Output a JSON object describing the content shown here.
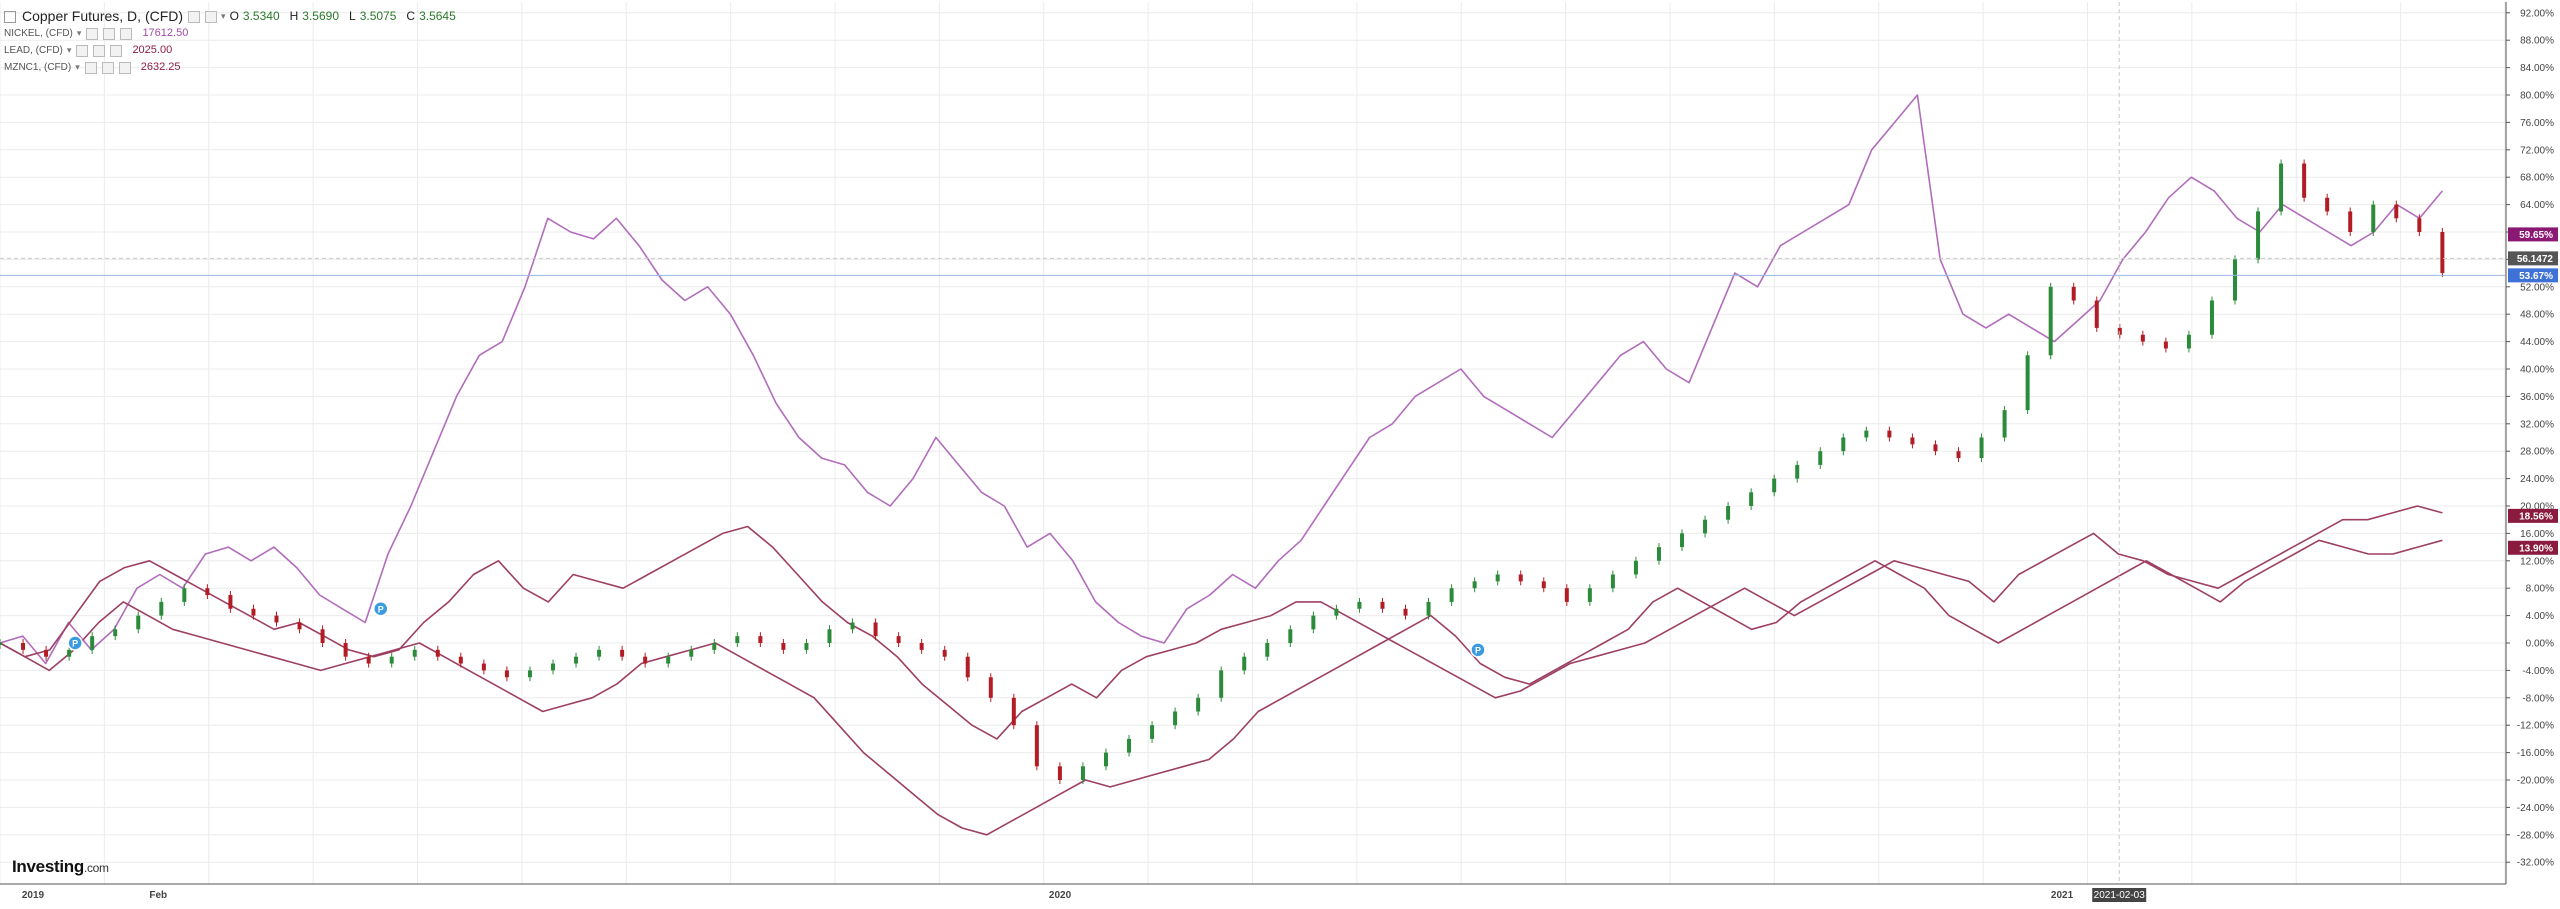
{
  "header": {
    "title": "Copper Futures, D, (CFD)",
    "ohlc": {
      "o_label": "O",
      "o": "3.5340",
      "h_label": "H",
      "h": "3.5690",
      "l_label": "L",
      "l": "3.5075",
      "c_label": "C",
      "c": "3.5645"
    },
    "overlays": [
      {
        "name": "NICKEL, (CFD)",
        "value": "17612.50",
        "color": "#a14ca8"
      },
      {
        "name": "LEAD, (CFD)",
        "value": "2025.00",
        "color": "#8f1d45"
      },
      {
        "name": "MZNC1, (CFD)",
        "value": "2632.25",
        "color": "#8f1d45"
      }
    ]
  },
  "brand": {
    "name": "Investing",
    "suffix": ".com"
  },
  "colors": {
    "nickel": "#b26cbc",
    "lead": "#9d3f63",
    "zinc": "#9d3f63",
    "up": "#2c8b3a",
    "down": "#b21c24",
    "grid": "#ececec",
    "axis": "#555555"
  },
  "chart_data": {
    "type": "line",
    "title": "Copper Futures, D, (CFD)",
    "y_unit": "%",
    "ylim": [
      -34,
      94
    ],
    "y_ticks": [
      "92.00%",
      "88.00%",
      "84.00%",
      "80.00%",
      "76.00%",
      "72.00%",
      "68.00%",
      "64.00%",
      "60.00%",
      "56.00%",
      "52.00%",
      "48.00%",
      "44.00%",
      "40.00%",
      "36.00%",
      "32.00%",
      "28.00%",
      "24.00%",
      "20.00%",
      "16.00%",
      "12.00%",
      "8.00%",
      "4.00%",
      "0.00%",
      "-4.00%",
      "-8.00%",
      "-12.00%",
      "-16.00%",
      "-20.00%",
      "-24.00%",
      "-28.00%",
      "-32.00%"
    ],
    "x_ticks": [
      "2019",
      "Feb",
      "2020",
      "2021"
    ],
    "x_tick_positions": [
      0.0,
      0.05,
      0.41,
      0.81
    ],
    "highlight_x_label": "2021-02-03",
    "highlight_x_position": 0.846,
    "grid": true,
    "series": [
      {
        "name": "NICKEL, (CFD)",
        "style": "line",
        "values": [
          0,
          1,
          -3,
          3,
          -1,
          2,
          8,
          10,
          8,
          13,
          14,
          12,
          14,
          11,
          7,
          5,
          3,
          13,
          20,
          28,
          36,
          42,
          44,
          52,
          62,
          60,
          59,
          62,
          58,
          53,
          50,
          52,
          48,
          42,
          35,
          30,
          27,
          26,
          22,
          20,
          24,
          30,
          26,
          22,
          20,
          14,
          16,
          12,
          6,
          3,
          1,
          0,
          5,
          7,
          10,
          8,
          12,
          15,
          20,
          25,
          30,
          32,
          36,
          38,
          40,
          36,
          34,
          32,
          30,
          34,
          38,
          42,
          44,
          40,
          38,
          46,
          54,
          52,
          58,
          60,
          62,
          64,
          72,
          76,
          80,
          56,
          48,
          46,
          48,
          46,
          44,
          47,
          50,
          56,
          60,
          65,
          68,
          66,
          62,
          60,
          64,
          62,
          60,
          58,
          60,
          64,
          62,
          66
        ]
      },
      {
        "name": "LEAD, (CFD)",
        "style": "line",
        "values": [
          0,
          -2,
          -4,
          -1,
          3,
          6,
          4,
          2,
          1,
          0,
          -1,
          -2,
          -3,
          -4,
          -3,
          -2,
          -1,
          0,
          -2,
          -4,
          -6,
          -8,
          -10,
          -9,
          -8,
          -6,
          -3,
          -2,
          -1,
          0,
          -2,
          -4,
          -6,
          -8,
          -12,
          -16,
          -19,
          -22,
          -25,
          -27,
          -28,
          -26,
          -24,
          -22,
          -20,
          -21,
          -20,
          -19,
          -18,
          -17,
          -14,
          -10,
          -8,
          -6,
          -4,
          -2,
          0,
          2,
          4,
          1,
          -3,
          -5,
          -6,
          -4,
          -2,
          0,
          2,
          6,
          8,
          6,
          4,
          2,
          3,
          6,
          8,
          10,
          12,
          10,
          8,
          4,
          2,
          0,
          2,
          4,
          6,
          8,
          10,
          12,
          10,
          8,
          6,
          9,
          11,
          13,
          15,
          14,
          13,
          13,
          14,
          15
        ]
      },
      {
        "name": "MZNC1, (CFD)",
        "style": "line",
        "values": [
          0,
          -2,
          -1,
          4,
          9,
          11,
          12,
          10,
          8,
          6,
          4,
          2,
          3,
          1,
          -1,
          -2,
          -1,
          3,
          6,
          10,
          12,
          8,
          6,
          10,
          9,
          8,
          10,
          12,
          14,
          16,
          17,
          14,
          10,
          6,
          3,
          1,
          -2,
          -6,
          -9,
          -12,
          -14,
          -10,
          -8,
          -6,
          -8,
          -4,
          -2,
          -1,
          0,
          2,
          3,
          4,
          6,
          6,
          4,
          2,
          0,
          -2,
          -4,
          -6,
          -8,
          -7,
          -5,
          -3,
          -2,
          -1,
          0,
          2,
          4,
          6,
          8,
          6,
          4,
          6,
          8,
          10,
          12,
          11,
          10,
          9,
          6,
          10,
          12,
          14,
          16,
          13,
          12,
          10,
          9,
          8,
          10,
          12,
          14,
          16,
          18,
          18,
          19,
          20,
          19
        ]
      },
      {
        "name": "Copper Futures, D, (CFD)",
        "style": "candles",
        "values": [
          0,
          -1,
          -2,
          -1,
          1,
          2,
          4,
          6,
          8,
          7,
          5,
          4,
          3,
          2,
          0,
          -2,
          -3,
          -2,
          -1,
          -2,
          -3,
          -4,
          -5,
          -4,
          -3,
          -2,
          -1,
          -2,
          -3,
          -2,
          -1,
          0,
          1,
          0,
          -1,
          0,
          2,
          3,
          1,
          0,
          -1,
          -2,
          -5,
          -8,
          -12,
          -18,
          -20,
          -18,
          -16,
          -14,
          -12,
          -10,
          -8,
          -4,
          -2,
          0,
          2,
          4,
          5,
          6,
          5,
          4,
          6,
          8,
          9,
          10,
          9,
          8,
          6,
          8,
          10,
          12,
          14,
          16,
          18,
          20,
          22,
          24,
          26,
          28,
          30,
          31,
          30,
          29,
          28,
          27,
          30,
          34,
          42,
          52,
          50,
          46,
          45,
          44,
          43,
          45,
          50,
          56,
          63,
          70,
          65,
          63,
          60,
          64,
          62,
          60,
          54
        ]
      }
    ],
    "last_value_tags": [
      {
        "label": "59.65%",
        "value": 59.65,
        "color": "#8b1873"
      },
      {
        "label": "56.1472",
        "value": 56.15,
        "color": "#555555"
      },
      {
        "label": "53.67%",
        "value": 53.67,
        "color": "#3e72d6"
      },
      {
        "label": "18.56%",
        "value": 18.56,
        "color": "#8a1b3f"
      },
      {
        "label": "13.90%",
        "value": 13.9,
        "color": "#8a1b3f"
      }
    ],
    "crosshair_y_value": 56.15,
    "reference_line_value": 53.67,
    "event_markers": [
      {
        "label": "P",
        "x_position": 0.03,
        "value": 0
      },
      {
        "label": "P",
        "x_position": 0.152,
        "value": 5
      },
      {
        "label": "P",
        "x_position": 0.59,
        "value": -1
      }
    ]
  }
}
